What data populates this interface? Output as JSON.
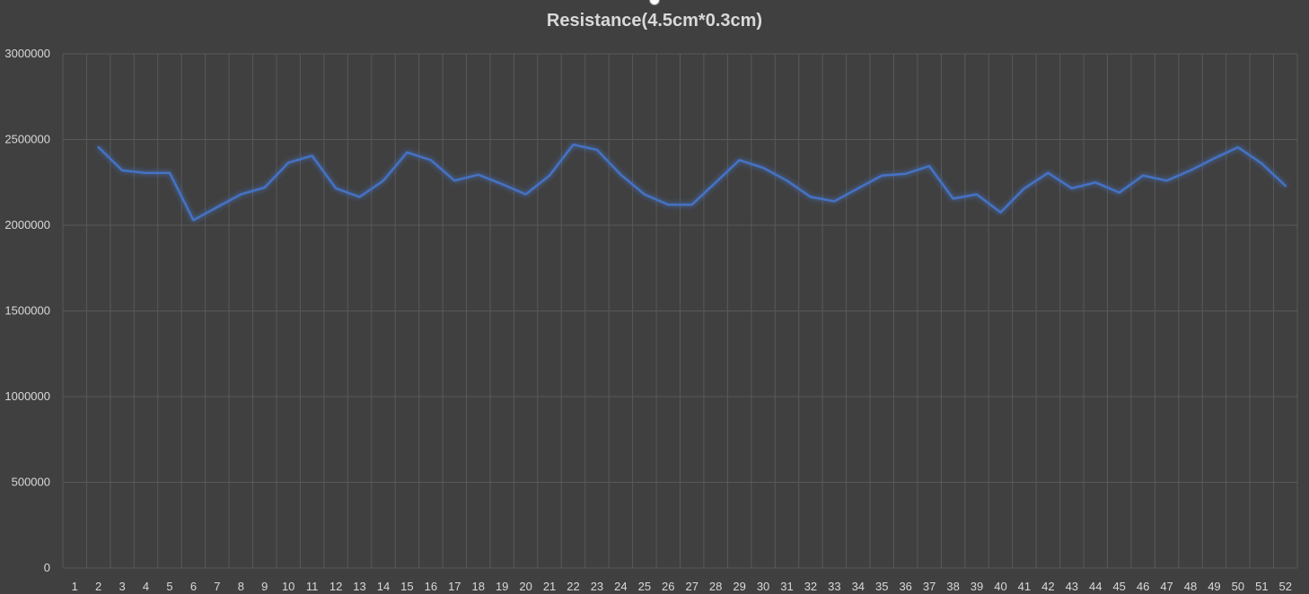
{
  "chart_data": {
    "type": "line",
    "title": "Resistance(4.5cm*0.3cm)",
    "xlabel": "",
    "ylabel": "",
    "categories": [
      "1",
      "2",
      "3",
      "4",
      "5",
      "6",
      "7",
      "8",
      "9",
      "10",
      "11",
      "12",
      "13",
      "14",
      "15",
      "16",
      "17",
      "18",
      "19",
      "20",
      "21",
      "22",
      "23",
      "24",
      "25",
      "26",
      "27",
      "28",
      "29",
      "30",
      "31",
      "32",
      "33",
      "34",
      "35",
      "36",
      "37",
      "38",
      "39",
      "40",
      "41",
      "42",
      "43",
      "44",
      "45",
      "46",
      "47",
      "48",
      "49",
      "50",
      "51",
      "52"
    ],
    "series": [
      {
        "values": [
          null,
          2455000,
          2320000,
          2305000,
          2305000,
          2030000,
          2105000,
          2180000,
          2220000,
          2365000,
          2405000,
          2215000,
          2165000,
          2260000,
          2425000,
          2380000,
          2260000,
          2295000,
          2240000,
          2180000,
          2290000,
          2470000,
          2440000,
          2295000,
          2180000,
          2120000,
          2120000,
          2250000,
          2380000,
          2335000,
          2260000,
          2165000,
          2140000,
          2215000,
          2290000,
          2300000,
          2345000,
          2155000,
          2180000,
          2075000,
          2215000,
          2305000,
          2215000,
          2250000,
          2190000,
          2290000,
          2260000,
          2320000,
          2390000,
          2455000,
          2360000,
          2230000
        ]
      }
    ],
    "ylim": [
      0,
      3000000
    ],
    "yticks": [
      "0",
      "500000",
      "1000000",
      "1500000",
      "2000000",
      "2500000",
      "3000000"
    ],
    "grid": true,
    "legend": "none",
    "colors": {
      "background": "#404040",
      "line": "#4472c4",
      "grid": "#595959",
      "text": "#d9d9d9"
    }
  }
}
